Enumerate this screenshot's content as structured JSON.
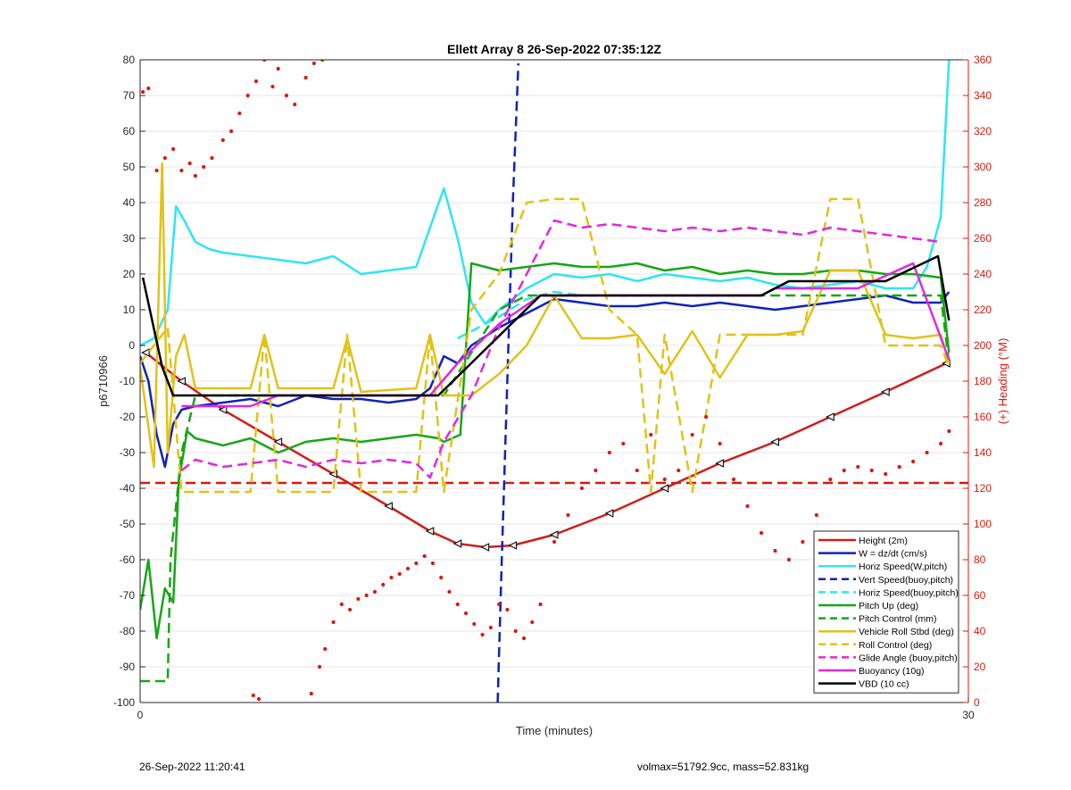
{
  "footer": {
    "left": "26-Sep-2022 11:20:41",
    "right": "volmax=51792.9cc, mass=52.831kg"
  },
  "chart_data": {
    "type": "line",
    "title": "Ellett Array 8 26-Sep-2022 07:35:12Z",
    "xlabel": "Time (minutes)",
    "ylabel": "p6710966",
    "y2label": "(+) Heading (°M)",
    "xlim": [
      0,
      30
    ],
    "ylim": [
      -100,
      80
    ],
    "y2lim": [
      0,
      360
    ],
    "x_ticks": [
      0,
      30
    ],
    "y_ticks": [
      -100,
      -90,
      -80,
      -70,
      -60,
      -50,
      -40,
      -30,
      -20,
      -10,
      0,
      10,
      20,
      30,
      40,
      50,
      60,
      70,
      80
    ],
    "y2_ticks": [
      0,
      20,
      40,
      60,
      80,
      100,
      120,
      140,
      160,
      180,
      200,
      220,
      240,
      260,
      280,
      300,
      320,
      340,
      360
    ],
    "grid": true,
    "legend_position": "bottom-right",
    "colors": {
      "height": "#cc1f1a",
      "w": "#0f23b5",
      "cyan": "#2ee6f0",
      "green": "#16a616",
      "yellow": "#e0c21a",
      "magenta": "#e028e0",
      "black": "#000000",
      "heading": "#d61a0f"
    },
    "series": [
      {
        "name": "Height (2m)",
        "color": "#cc1f1a",
        "style": "solid",
        "x": [
          0.2,
          1.5,
          3,
          5,
          7,
          9,
          10.5,
          11.5,
          12.5,
          13.5,
          15,
          17,
          19,
          21,
          23,
          25,
          27,
          29.2
        ],
        "y": [
          -2,
          -10,
          -18,
          -27,
          -36,
          -45,
          -52,
          -55.5,
          -56.5,
          -56,
          -53,
          -47,
          -40,
          -33,
          -27,
          -20,
          -13,
          -5
        ]
      },
      {
        "name": "W = dz/dt (cm/s)",
        "color": "#0f23b5",
        "style": "solid",
        "x": [
          0,
          0.3,
          0.6,
          0.9,
          1.2,
          1.5,
          2,
          3,
          4,
          5,
          6,
          7,
          8,
          9,
          10,
          10.5,
          11,
          11.5,
          12,
          13,
          14,
          15,
          16,
          17,
          18,
          19,
          20,
          21,
          22,
          23,
          24,
          25,
          26,
          27,
          28,
          29,
          29.3
        ],
        "y": [
          -3,
          -10,
          -25,
          -34,
          -22,
          -18,
          -17,
          -16,
          -15,
          -17,
          -14,
          -15,
          -15,
          -16,
          -15,
          -12,
          -3,
          -5,
          0,
          5,
          9,
          13,
          12,
          11,
          11,
          12,
          11,
          12,
          11,
          10,
          11,
          12,
          13,
          14,
          12,
          12,
          15
        ]
      },
      {
        "name": "Horiz Speed(W,pitch)",
        "color": "#2ee6f0",
        "style": "solid",
        "x": [
          0,
          0.5,
          1,
          1.3,
          1.6,
          2,
          2.5,
          3,
          4,
          5,
          6,
          7,
          8,
          9,
          10,
          10.5,
          11,
          11.5,
          12,
          12.5,
          13,
          14,
          15,
          16,
          17,
          18,
          19,
          20,
          21,
          22,
          23,
          24,
          25,
          26,
          27,
          28,
          28.5,
          29,
          29.3
        ],
        "y": [
          0,
          2,
          10,
          39,
          35,
          29,
          27,
          26,
          25,
          24,
          23,
          25,
          20,
          21,
          22,
          33,
          44,
          30,
          12,
          6,
          10,
          16,
          20,
          19,
          20,
          18,
          20,
          19,
          18,
          19,
          17,
          16,
          17,
          18,
          16,
          16,
          22,
          36,
          80
        ]
      },
      {
        "name": "Vert Speed(buoy,pitch)",
        "color": "#0f23b5",
        "style": "dashed",
        "x": [
          12.95,
          13.1,
          13.3,
          13.5,
          13.7
        ],
        "y": [
          -100,
          -60,
          -10,
          40,
          79
        ]
      },
      {
        "name": "Horiz Speed(buoy,pitch)",
        "color": "#2ee6f0",
        "style": "dashed",
        "x": [
          11.5,
          13,
          14,
          15,
          16
        ],
        "y": [
          2,
          8,
          13,
          15,
          14
        ]
      },
      {
        "name": "Pitch Up (deg)",
        "color": "#16a616",
        "style": "solid",
        "x": [
          0,
          0.3,
          0.6,
          0.9,
          1.2,
          1.4,
          1.7,
          2,
          3,
          4,
          5,
          6,
          7,
          8,
          9,
          10,
          10.8,
          11,
          11.6,
          12,
          13,
          14,
          15,
          16,
          17,
          18,
          19,
          20,
          21,
          22,
          23,
          24,
          25,
          26,
          27,
          28,
          29,
          29.3
        ],
        "y": [
          -74,
          -60,
          -82,
          -68,
          -72,
          -38,
          -24,
          -26,
          -28,
          -26,
          -30,
          -27,
          -26,
          -27,
          -26,
          -25,
          -26,
          -27,
          -25,
          23,
          21,
          22,
          23,
          22,
          22,
          23,
          21,
          22,
          20,
          21,
          20,
          20,
          21,
          21,
          20,
          20,
          19,
          -2
        ]
      },
      {
        "name": "Pitch Control (mm)",
        "color": "#16a616",
        "style": "dashed",
        "x": [
          0,
          1,
          1.1,
          1.5,
          2,
          11,
          12,
          13,
          14,
          29,
          29.3
        ],
        "y": [
          -94,
          -94,
          -60,
          -30,
          -14,
          -14,
          -2,
          10,
          14,
          14,
          -5
        ]
      },
      {
        "name": "Vehicle Roll Stbd (deg)",
        "color": "#e0c21a",
        "style": "solid",
        "x": [
          0,
          0.5,
          0.8,
          1,
          1.3,
          1.6,
          2,
          4,
          4.5,
          5,
          7,
          7.5,
          8,
          10,
          10.5,
          11,
          12,
          13,
          14,
          15,
          16,
          17,
          18,
          19,
          20,
          21,
          22,
          23,
          24,
          25,
          26,
          27,
          28,
          29,
          29.3
        ],
        "y": [
          -6,
          -34,
          51,
          -30,
          -3,
          3,
          -12,
          -12,
          3,
          -12,
          -12,
          2,
          -13,
          -12,
          3,
          -14,
          -14,
          -8,
          0,
          14,
          2,
          2,
          3,
          -8,
          4,
          -9,
          3,
          3,
          4,
          21,
          21,
          3,
          2,
          3,
          -5
        ]
      },
      {
        "name": "Roll Control (deg)",
        "color": "#e0c21a",
        "style": "dashed",
        "x": [
          0,
          1,
          1.5,
          2,
          4,
          4.5,
          5,
          7,
          7.5,
          8,
          10,
          10.5,
          11,
          12,
          13,
          14,
          15,
          16,
          17,
          18,
          18.5,
          19,
          20,
          21,
          22,
          23,
          24,
          25,
          26,
          27,
          28,
          29,
          29.3
        ],
        "y": [
          -5,
          5,
          -41,
          -41,
          -41,
          3,
          -41,
          -41,
          3,
          -41,
          -41,
          3,
          -41,
          10,
          20,
          40,
          41,
          41,
          10,
          3,
          -41,
          3,
          -41,
          3,
          3,
          3,
          3,
          41,
          41,
          0,
          0,
          0,
          -6
        ]
      },
      {
        "name": "Glide Angle (buoy,pitch)",
        "color": "#e028e0",
        "style": "dashed",
        "x": [
          1.5,
          2,
          3,
          4,
          5,
          6,
          7,
          8,
          9,
          10,
          10.5,
          11,
          12,
          13,
          14,
          15,
          16,
          17,
          18,
          19,
          20,
          21,
          22,
          23,
          24,
          25,
          26,
          27,
          28,
          29
        ],
        "y": [
          -35,
          -32,
          -34,
          -33,
          -32,
          -34,
          -32,
          -33,
          -32,
          -33,
          -37,
          -27,
          -14,
          5,
          20,
          35,
          33,
          34,
          33,
          32,
          33,
          32,
          33,
          32,
          31,
          33,
          32,
          31,
          30,
          29
        ]
      },
      {
        "name": "Buoyancy (10g)",
        "color": "#e028e0",
        "style": "solid",
        "x": [
          1.5,
          4,
          5,
          10.5,
          11.5,
          13,
          14.5,
          22.5,
          23,
          26,
          28,
          29.3
        ],
        "y": [
          -17,
          -17,
          -14,
          -14,
          -5,
          6,
          14,
          14,
          16,
          16,
          23,
          -4
        ]
      },
      {
        "name": "VBD (10 cc)",
        "color": "#000000",
        "style": "solid",
        "x": [
          0.1,
          0.8,
          1.2,
          10.8,
          14.5,
          22.5,
          23.5,
          27,
          28.9,
          29.3
        ],
        "y": [
          19,
          -6,
          -14,
          -14,
          14,
          14,
          18,
          18,
          25,
          7
        ]
      },
      {
        "name": "Heading",
        "color": "#d61a0f",
        "style": "dotted",
        "axis": "right",
        "x": [
          0.1,
          0.3,
          0.6,
          0.9,
          1.2,
          1.5,
          1.8,
          2,
          2.3,
          2.6,
          3,
          3.3,
          3.6,
          3.9,
          4.2,
          4.5,
          4.8,
          5,
          5.3,
          5.6,
          6,
          6.3,
          6.6,
          4.1,
          4.3,
          6.2,
          6.5,
          6.7,
          7,
          7.3,
          7.6,
          7.9,
          8.2,
          8.5,
          8.8,
          9.1,
          9.4,
          9.7,
          10,
          10.3,
          10.6,
          10.9,
          11.2,
          11.5,
          11.8,
          12.1,
          12.4,
          12.7,
          13,
          13.3,
          13.6,
          13.9,
          14.2,
          14.5,
          15,
          15.5,
          16,
          16.5,
          17,
          17.5,
          18,
          18.5,
          19,
          19.5,
          20,
          20.5,
          21,
          21.5,
          22,
          22.5,
          23,
          23.5,
          24,
          24.5,
          25,
          25.5,
          26,
          26.5,
          27,
          27.5,
          28,
          28.5,
          29,
          29.3
        ],
        "y": [
          342,
          344,
          298,
          305,
          310,
          298,
          302,
          295,
          300,
          305,
          315,
          320,
          330,
          340,
          348,
          360,
          345,
          355,
          340,
          335,
          350,
          358,
          360,
          4,
          2,
          5,
          20,
          30,
          45,
          55,
          52,
          58,
          60,
          62,
          66,
          70,
          72,
          75,
          78,
          82,
          78,
          70,
          62,
          55,
          50,
          44,
          38,
          42,
          55,
          52,
          40,
          36,
          45,
          55,
          90,
          105,
          120,
          130,
          140,
          145,
          130,
          150,
          125,
          130,
          150,
          160,
          145,
          125,
          110,
          95,
          85,
          80,
          90,
          105,
          125,
          130,
          132,
          130,
          128,
          132,
          135,
          140,
          145,
          152
        ]
      }
    ],
    "reference_lines": [
      {
        "series": "Heading ref",
        "color": "#d61a0f",
        "style": "dashed",
        "axis": "right",
        "y": 123
      }
    ]
  }
}
